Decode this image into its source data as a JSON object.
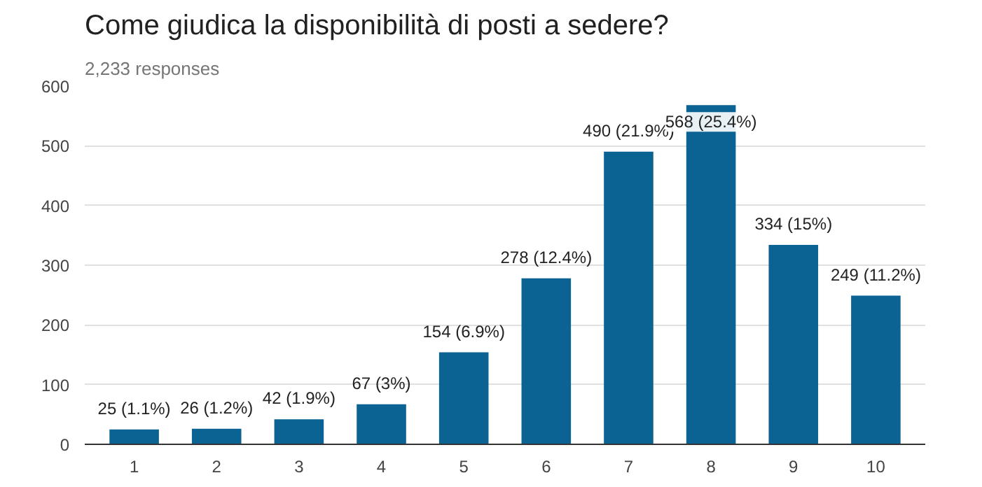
{
  "chart_data": {
    "type": "bar",
    "title": "Come giudica la disponibilità di posti a sedere?",
    "subtitle": "2,233 responses",
    "categories": [
      "1",
      "2",
      "3",
      "4",
      "5",
      "6",
      "7",
      "8",
      "9",
      "10"
    ],
    "values": [
      25,
      26,
      42,
      67,
      154,
      278,
      490,
      568,
      334,
      249
    ],
    "value_labels": [
      "25 (1.1%)",
      "26 (1.2%)",
      "42 (1.9%)",
      "67 (3%)",
      "154 (6.9%)",
      "278 (12.4%)",
      "490 (21.9%)",
      "568 (25.4%)",
      "334 (15%)",
      "249 (11.2%)"
    ],
    "color": "#0b6394",
    "ylim": [
      0,
      600
    ],
    "yticks": [
      0,
      100,
      200,
      300,
      400,
      500,
      600
    ],
    "grid": "y"
  }
}
